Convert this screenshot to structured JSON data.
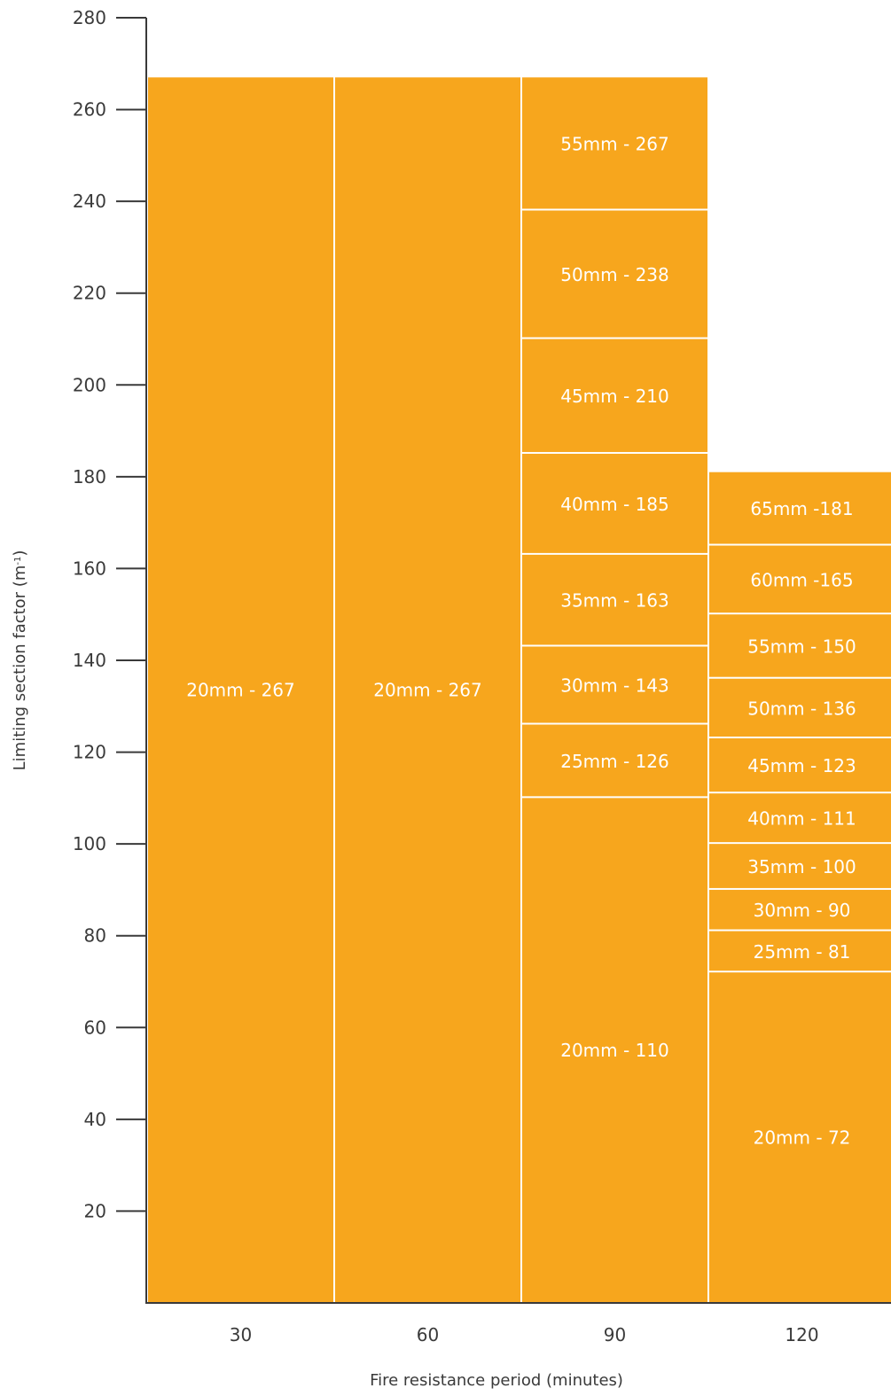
{
  "chart_data": {
    "type": "bar",
    "xlabel": "Fire resistance period (minutes)",
    "ylabel": "Limiting section factor (m",
    "ylabel_sup": "-1",
    "ylabel_end": ")",
    "ylim": [
      0,
      280
    ],
    "yticks": [
      20,
      40,
      60,
      80,
      100,
      120,
      140,
      160,
      180,
      200,
      220,
      240,
      260,
      280
    ],
    "grid": false,
    "legend": "none",
    "colors": {
      "bar": "#f7a61d",
      "divider": "#ffffff",
      "axis": "#3a3a3a",
      "label": "#ffffff"
    },
    "categories": [
      "30",
      "60",
      "90",
      "120"
    ],
    "stacks": [
      {
        "category": "30",
        "segments": [
          {
            "label": "20mm - 267",
            "value": 267
          }
        ]
      },
      {
        "category": "60",
        "segments": [
          {
            "label": "20mm - 267",
            "value": 267
          }
        ]
      },
      {
        "category": "90",
        "segments": [
          {
            "label": "20mm - 110",
            "value": 110
          },
          {
            "label": "25mm - 126",
            "value": 126
          },
          {
            "label": "30mm - 143",
            "value": 143
          },
          {
            "label": "35mm - 163",
            "value": 163
          },
          {
            "label": "40mm - 185",
            "value": 185
          },
          {
            "label": "45mm - 210",
            "value": 210
          },
          {
            "label": "50mm - 238",
            "value": 238
          },
          {
            "label": "55mm - 267",
            "value": 267
          }
        ]
      },
      {
        "category": "120",
        "segments": [
          {
            "label": "20mm - 72",
            "value": 72
          },
          {
            "label": "25mm - 81",
            "value": 81
          },
          {
            "label": "30mm - 90",
            "value": 90
          },
          {
            "label": "35mm - 100",
            "value": 100
          },
          {
            "label": "40mm - 111",
            "value": 111
          },
          {
            "label": "45mm - 123",
            "value": 123
          },
          {
            "label": "50mm - 136",
            "value": 136
          },
          {
            "label": "55mm - 150",
            "value": 150
          },
          {
            "label": "60mm -165",
            "value": 165
          },
          {
            "label": "65mm -181",
            "value": 181
          }
        ]
      }
    ]
  }
}
